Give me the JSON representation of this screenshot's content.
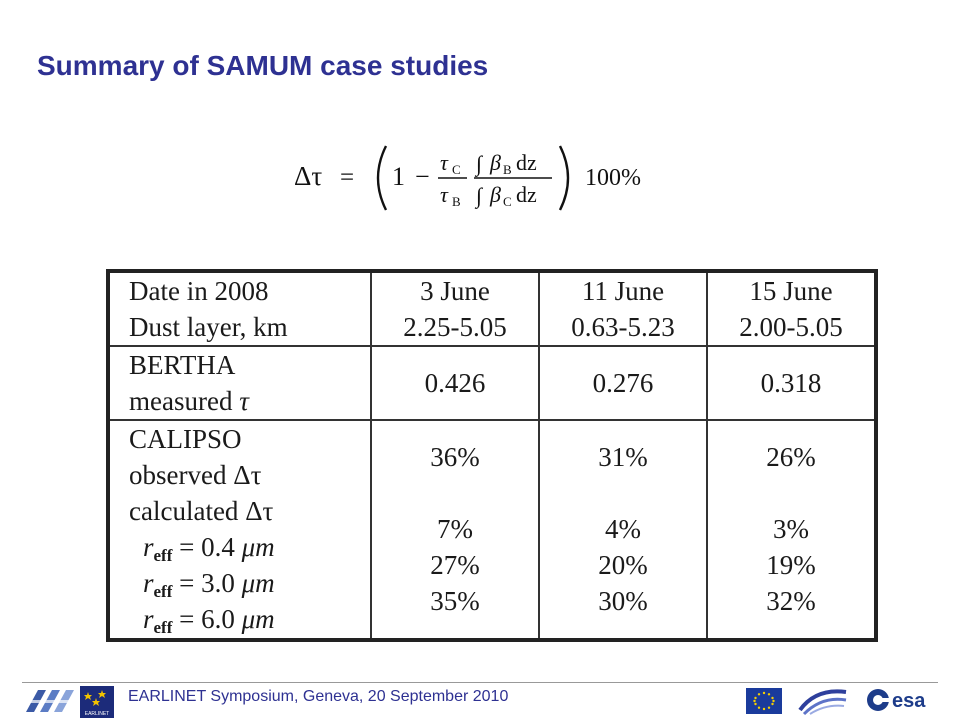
{
  "slide": {
    "title": "Summary of SAMUM case studies"
  },
  "formula": {
    "lhs": "Δτ",
    "equals": "=",
    "one": "1",
    "minus": "−",
    "tau": "τ",
    "sub_c": "C",
    "sub_b": "B",
    "integral": "∫",
    "beta": "β",
    "dz": "dz",
    "percent": "100%"
  },
  "table": {
    "header": {
      "label_lines": [
        "Date in 2008",
        "Dust layer, km"
      ],
      "columns": [
        {
          "date": "3 June",
          "layer": "2.25-5.05"
        },
        {
          "date": "11 June",
          "layer": "0.63-5.23"
        },
        {
          "date": "15 June",
          "layer": "2.00-5.05"
        }
      ]
    },
    "bertha": {
      "label_line1": "BERTHA",
      "label_line2_prefix": "measured ",
      "label_line2_symbol": "τ",
      "values": [
        "0.426",
        "0.276",
        "0.318"
      ]
    },
    "calipso": {
      "label_line1": "CALIPSO",
      "observed_prefix": "observed ",
      "calculated_prefix": "calculated ",
      "delta_tau": "Δτ",
      "observed": [
        "36%",
        "31%",
        "26%"
      ],
      "r_symbol": "r",
      "r_sub": "eff",
      "r_unit": "μm",
      "radii": [
        {
          "value": "= 0.4 ",
          "results": [
            "7%",
            "4%",
            "3%"
          ]
        },
        {
          "value": "= 3.0 ",
          "results": [
            "27%",
            "20%",
            "19%"
          ]
        },
        {
          "value": "= 6.0 ",
          "results": [
            "35%",
            "30%",
            "32%"
          ]
        }
      ]
    }
  },
  "footer": {
    "text": "EARLINET Symposium, Geneva, 20 September 2010",
    "earlinet_logo_text": "EARLINET",
    "esa_logo_text": "esa"
  }
}
